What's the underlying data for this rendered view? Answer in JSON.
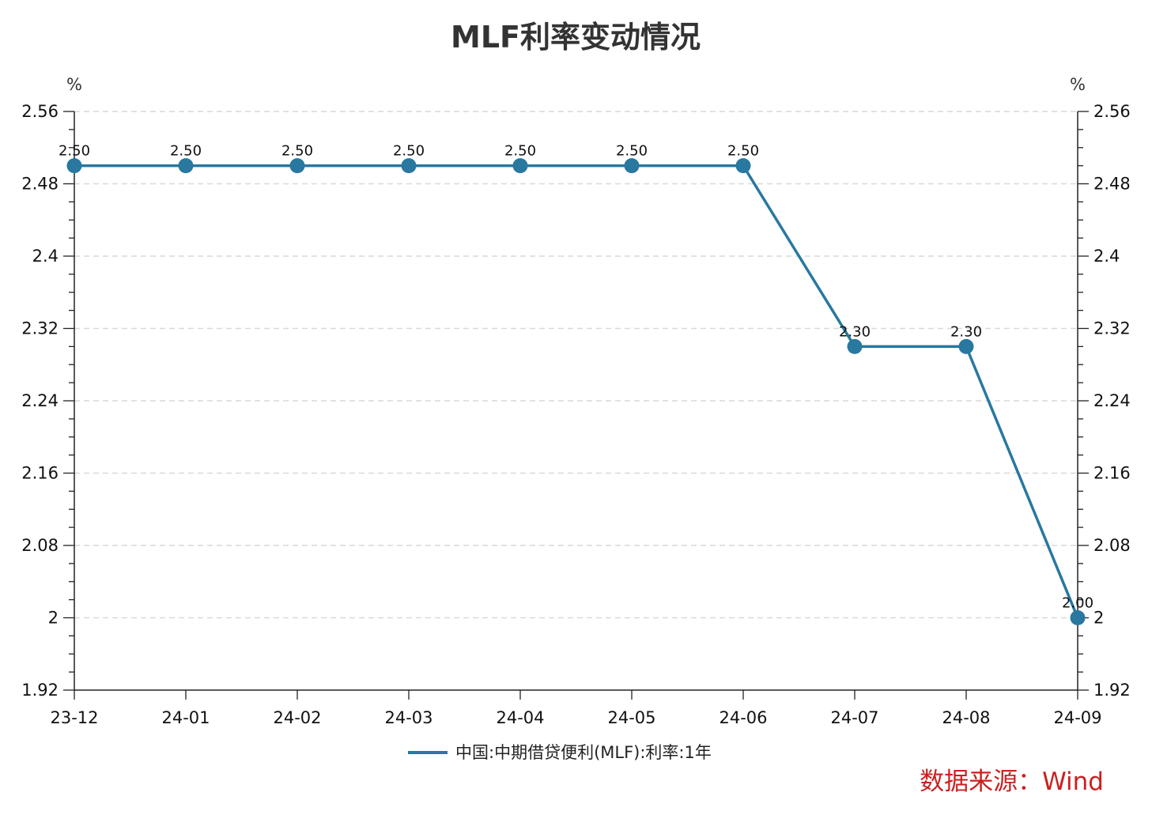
{
  "chart_data": {
    "type": "line",
    "title": "MLF利率变动情况",
    "categories": [
      "23-12",
      "24-01",
      "24-02",
      "24-03",
      "24-04",
      "24-05",
      "24-06",
      "24-07",
      "24-08",
      "24-09"
    ],
    "series": [
      {
        "name": "中国:中期借贷便利(MLF):利率:1年",
        "values": [
          2.5,
          2.5,
          2.5,
          2.5,
          2.5,
          2.5,
          2.5,
          2.3,
          2.3,
          2.0
        ],
        "labels": [
          "2.50",
          "2.50",
          "2.50",
          "2.50",
          "2.50",
          "2.50",
          "2.50",
          "2.30",
          "2.30",
          "2.00"
        ],
        "color": "#2878a0"
      }
    ],
    "ylabel_left": "%",
    "ylabel_right": "%",
    "ylim": [
      1.92,
      2.56
    ],
    "yticks": [
      1.92,
      2.0,
      2.08,
      2.16,
      2.24,
      2.32,
      2.4,
      2.48,
      2.56
    ],
    "ytick_labels": [
      "1.92",
      "2",
      "2.08",
      "2.16",
      "2.24",
      "2.32",
      "2.4",
      "2.48",
      "2.56"
    ],
    "grid": true,
    "legend_position": "bottom"
  },
  "source": "数据来源：Wind"
}
